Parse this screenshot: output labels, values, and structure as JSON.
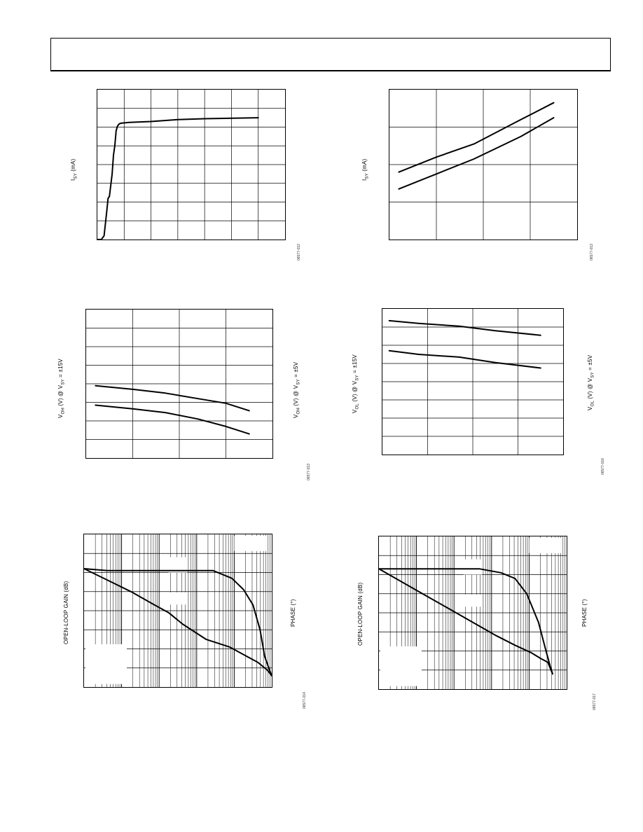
{
  "charts": [
    {
      "id": "c1",
      "ylabel_main": "I",
      "ylabel_sub": "SY",
      "ylabel_rest": " (mA)",
      "fig_id": "06577-012",
      "chart_data": {
        "type": "line",
        "xdiv": 7,
        "ydiv": 8,
        "x_range": [
          0,
          7
        ],
        "y_range": [
          0,
          8
        ],
        "grid": true,
        "series": [
          {
            "x": [
              0,
              0.15,
              0.25,
              0.35,
              0.4,
              0.45,
              0.55,
              0.6,
              0.65,
              0.7,
              0.75,
              0.8,
              0.85,
              0.95,
              1.2,
              2.0,
              3.0,
              4.0,
              6.0
            ],
            "y": [
              0,
              0,
              0.2,
              1.5,
              2.2,
              2.3,
              3.5,
              4.5,
              5.0,
              5.8,
              6.05,
              6.15,
              6.2,
              6.22,
              6.25,
              6.3,
              6.4,
              6.45,
              6.5
            ]
          }
        ]
      }
    },
    {
      "id": "c2",
      "ylabel_main": "I",
      "ylabel_sub": "SY",
      "ylabel_rest": " (mA)",
      "fig_id": "06577-013",
      "chart_data": {
        "type": "line",
        "xdiv": 4,
        "ydiv": 4,
        "x_range": [
          0,
          4
        ],
        "y_range": [
          0,
          4
        ],
        "grid": true,
        "series": [
          {
            "x": [
              0.2,
              1.0,
              1.8,
              2.8,
              3.5
            ],
            "y": [
              1.8,
              2.2,
              2.55,
              3.2,
              3.65
            ]
          },
          {
            "x": [
              0.2,
              1.0,
              1.8,
              2.8,
              3.5
            ],
            "y": [
              1.35,
              1.75,
              2.15,
              2.75,
              3.25
            ]
          }
        ]
      }
    },
    {
      "id": "c3",
      "ylabel_main": "V",
      "ylabel_sub": "OH",
      "ylabel_rest": " (V) @ V",
      "ylabel_sub2": "SY",
      "ylabel_tail": " = ±15V",
      "rlabel_main": "V",
      "rlabel_sub": "OH",
      "rlabel_rest": " (V) @ V",
      "rlabel_sub2": "SY",
      "rlabel_tail": " = ±5V",
      "fig_id": "06577-013",
      "chart_data": {
        "type": "line",
        "xdiv": 4,
        "ydiv": 8,
        "x_range": [
          0,
          4
        ],
        "y_range": [
          0,
          8
        ],
        "grid": true,
        "series": [
          {
            "x": [
              0.2,
              1.0,
              1.7,
              2.4,
              3.0,
              3.5
            ],
            "y": [
              3.9,
              3.7,
              3.5,
              3.2,
              2.95,
              2.55
            ]
          },
          {
            "x": [
              0.2,
              1.0,
              1.7,
              2.4,
              3.0,
              3.5
            ],
            "y": [
              2.85,
              2.65,
              2.45,
              2.1,
              1.7,
              1.3
            ]
          }
        ]
      }
    },
    {
      "id": "c4",
      "ylabel_main": "V",
      "ylabel_sub": "OL",
      "ylabel_rest": " (V) @ V",
      "ylabel_sub2": "SY",
      "ylabel_tail": " = ±15V",
      "rlabel_main": "V",
      "rlabel_sub": "OL",
      "rlabel_rest": " (V) @ V",
      "rlabel_sub2": "SY",
      "rlabel_tail": " = ±5V",
      "fig_id": "06577-016",
      "chart_data": {
        "type": "line",
        "xdiv": 4,
        "ydiv": 8,
        "x_range": [
          0,
          4
        ],
        "y_range": [
          0,
          8
        ],
        "grid": true,
        "series": [
          {
            "x": [
              0.15,
              0.8,
              1.7,
              2.5,
              3.5
            ],
            "y": [
              7.35,
              7.2,
              7.05,
              6.8,
              6.55
            ]
          },
          {
            "x": [
              0.15,
              0.8,
              1.7,
              2.5,
              3.5
            ],
            "y": [
              5.7,
              5.5,
              5.35,
              5.05,
              4.75
            ]
          }
        ]
      }
    },
    {
      "id": "c5",
      "ylabel_main": "OPEN-LOOP GAIN (dB)",
      "rlabel_main": "PHASE (°)",
      "fig_id": "06577-014",
      "chart_data": {
        "type": "line",
        "xdiv": 8,
        "ydiv": 8,
        "x_range": [
          0,
          8
        ],
        "y_range": [
          0,
          8
        ],
        "log_x_decades": 5,
        "grid": true,
        "series": [
          {
            "x": [
              0,
              1.0,
              2.0,
              4.0,
              5.5,
              6.3,
              6.8,
              7.2,
              7.5,
              7.7,
              7.9,
              8.0
            ],
            "y": [
              6.2,
              6.1,
              6.1,
              6.1,
              6.1,
              5.7,
              5.1,
              4.3,
              3.0,
              1.6,
              0.9,
              0.6
            ]
          },
          {
            "x": [
              0,
              1.0,
              2.0,
              3.0,
              3.6,
              4.2,
              5.2,
              6.2,
              6.8,
              7.4,
              7.8,
              8.0
            ],
            "y": [
              6.2,
              5.6,
              5.0,
              4.3,
              3.9,
              3.3,
              2.5,
              2.1,
              1.7,
              1.3,
              0.9,
              0.6
            ]
          }
        ],
        "legend_box": "top-right"
      }
    },
    {
      "id": "c6",
      "ylabel_main": "OPEN-LOOP GAIN (dB)",
      "rlabel_main": "PHASE (°)",
      "fig_id": "06577-017",
      "chart_data": {
        "type": "line",
        "xdiv": 8,
        "ydiv": 8,
        "x_range": [
          0,
          8
        ],
        "y_range": [
          0,
          8
        ],
        "log_x_decades": 5,
        "grid": true,
        "series": [
          {
            "x": [
              0,
              1.0,
              2.0,
              3.2,
              4.3,
              5.2,
              5.8,
              6.3,
              6.8,
              7.1,
              7.3,
              7.4
            ],
            "y": [
              6.3,
              6.3,
              6.3,
              6.3,
              6.3,
              6.1,
              5.8,
              5.0,
              3.5,
              2.1,
              1.2,
              0.8
            ]
          },
          {
            "x": [
              0,
              1.0,
              2.0,
              3.0,
              4.0,
              5.0,
              5.8,
              6.5,
              6.9,
              7.2,
              7.4
            ],
            "y": [
              6.3,
              5.6,
              4.9,
              4.2,
              3.5,
              2.8,
              2.3,
              1.9,
              1.6,
              1.4,
              0.8
            ]
          }
        ],
        "legend_box": "top-right"
      }
    }
  ]
}
